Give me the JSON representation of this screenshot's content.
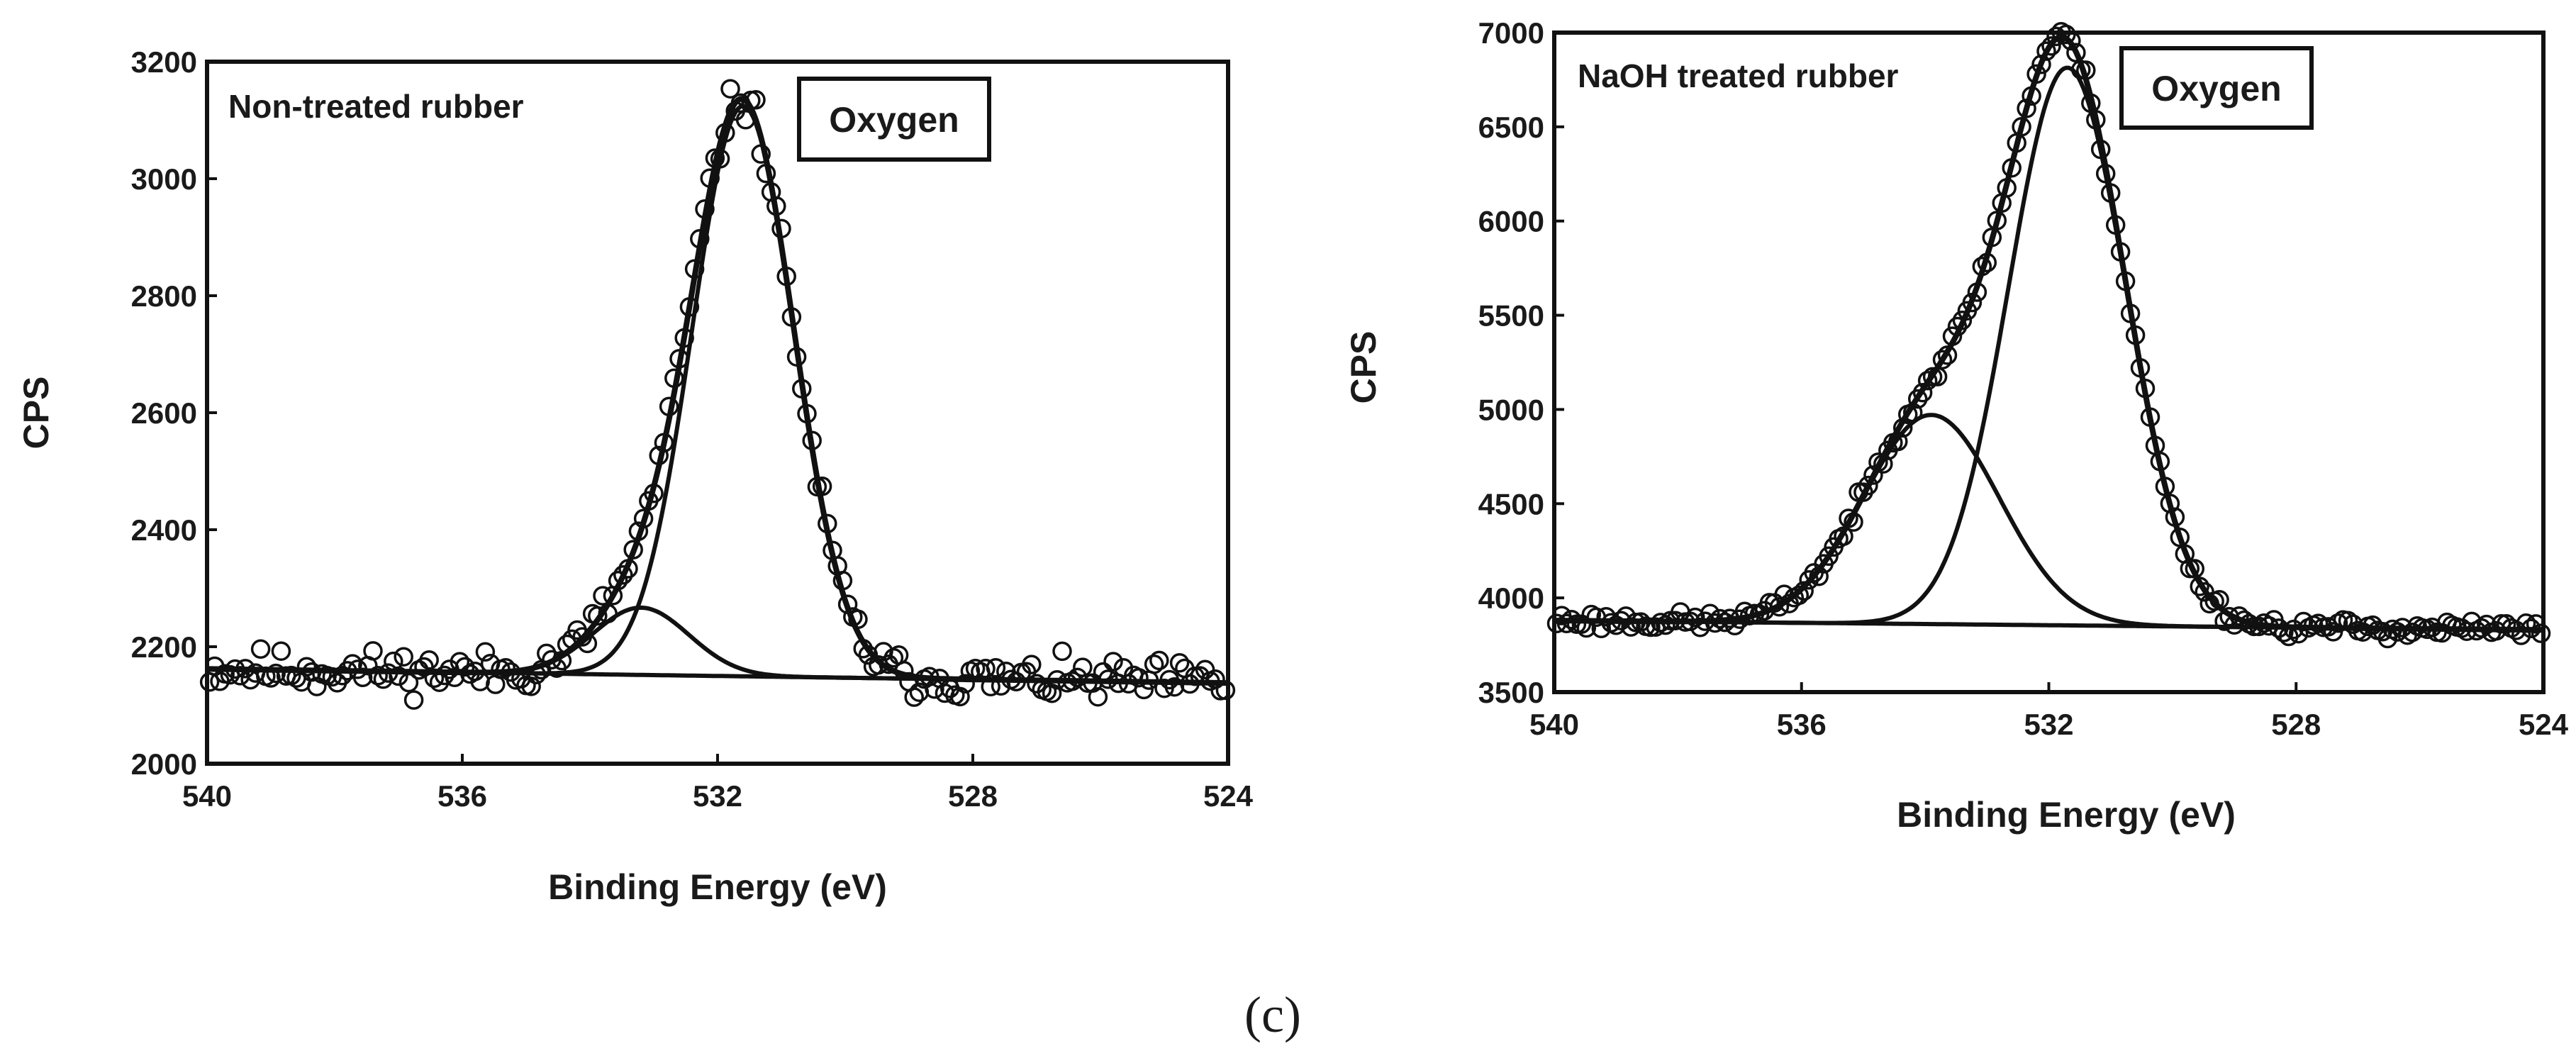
{
  "figure_caption": "(c)",
  "chart_data": [
    {
      "type": "scatter",
      "title": "Non-treated rubber",
      "label_box": "Oxygen",
      "xlabel": "Binding Energy (eV)",
      "ylabel": "CPS",
      "xlim": [
        540,
        524
      ],
      "ylim": [
        2000,
        3200
      ],
      "xticks": [
        540,
        536,
        532,
        528,
        524
      ],
      "yticks": [
        2000,
        2200,
        2400,
        2600,
        2800,
        3000,
        3200
      ],
      "baseline": [
        [
          540,
          2162
        ],
        [
          524,
          2138
        ]
      ],
      "components": [
        {
          "name": "peak-1",
          "center": 531.6,
          "amplitude": 975,
          "sigma": 0.8
        },
        {
          "name": "peak-2",
          "center": 533.2,
          "amplitude": 115,
          "sigma": 0.75
        }
      ],
      "noise": 22,
      "n_points": 200,
      "seed": 11
    },
    {
      "type": "scatter",
      "title": "NaOH treated rubber",
      "label_box": "Oxygen",
      "xlabel": "Binding Energy (eV)",
      "ylabel": "CPS",
      "xlim": [
        540,
        524
      ],
      "ylim": [
        3500,
        7000
      ],
      "xticks": [
        540,
        536,
        532,
        528,
        524
      ],
      "yticks": [
        3500,
        4000,
        4500,
        5000,
        5500,
        6000,
        6500,
        7000
      ],
      "baseline": [
        [
          540,
          3880
        ],
        [
          524,
          3830
        ]
      ],
      "components": [
        {
          "name": "peak-1",
          "center": 531.7,
          "amplitude": 2960,
          "sigma": 0.95
        },
        {
          "name": "peak-2",
          "center": 533.9,
          "amplitude": 1110,
          "sigma": 1.1
        }
      ],
      "noise": 30,
      "n_points": 200,
      "seed": 23
    }
  ]
}
